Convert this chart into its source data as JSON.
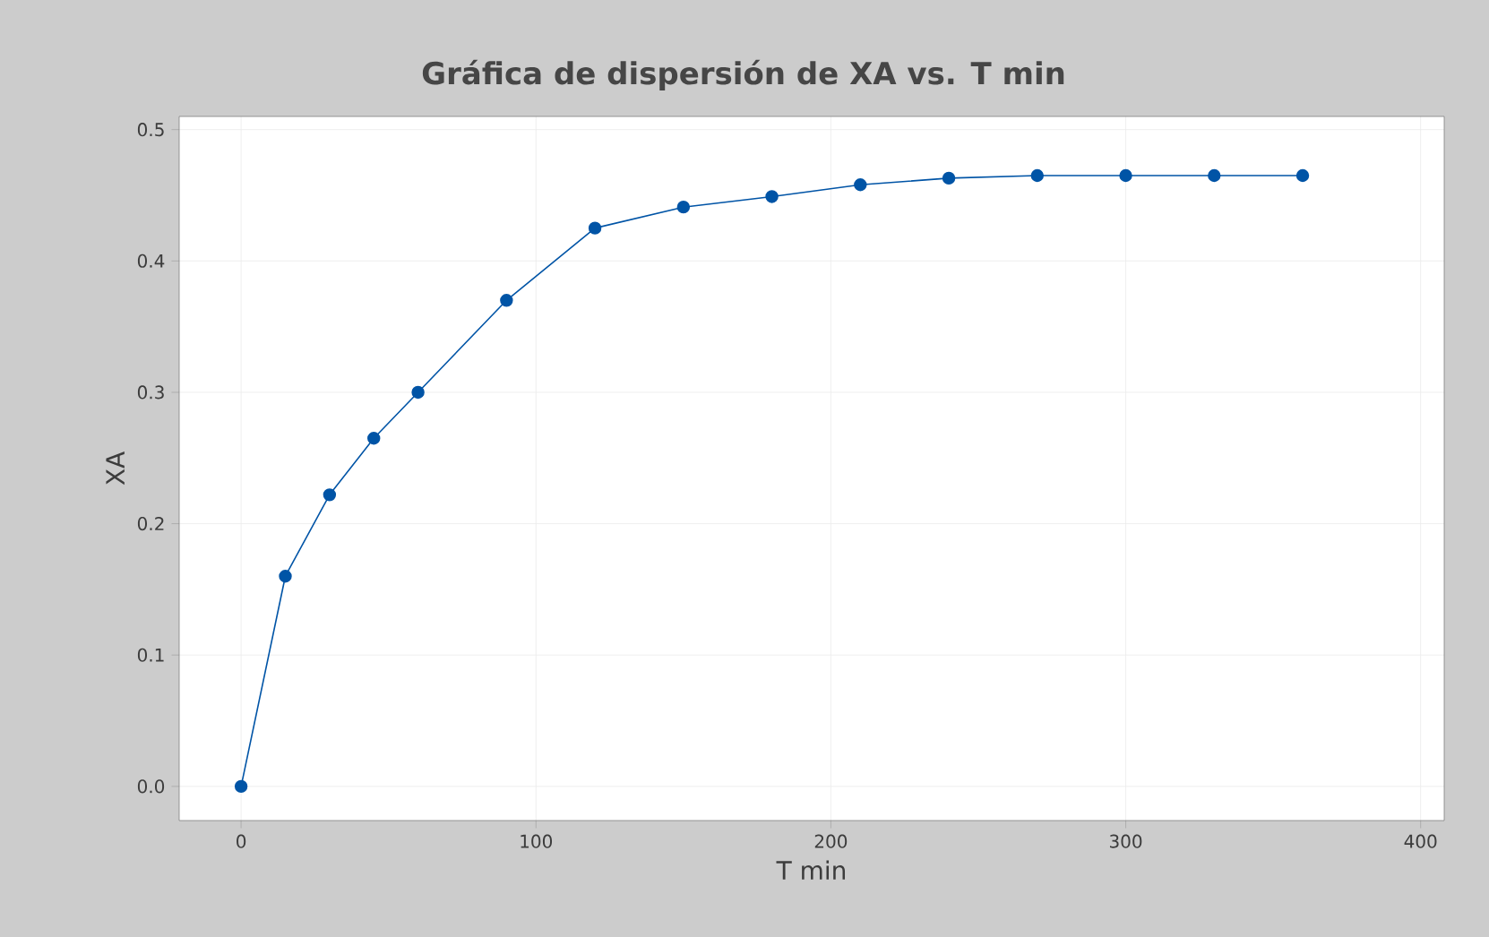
{
  "chart_data": {
    "type": "line",
    "title": "Gráfica de dispersión de XA vs. T min",
    "xlabel": "T min",
    "ylabel": "XA",
    "x": [
      0,
      15,
      30,
      45,
      60,
      90,
      120,
      150,
      180,
      210,
      240,
      270,
      300,
      330,
      360
    ],
    "series": [
      {
        "color": "#0054a6",
        "values": [
          0,
          0.16,
          0.222,
          0.265,
          0.3,
          0.37,
          0.425,
          0.441,
          0.449,
          0.458,
          0.463,
          0.465,
          0.465,
          0.465,
          0.465
        ]
      }
    ],
    "xlim": [
      -21,
      408
    ],
    "ylim": [
      -0.026,
      0.51
    ],
    "xticks": [
      0,
      100,
      200,
      300,
      400
    ],
    "yticks": [
      {
        "value": 0,
        "label": "0.0"
      },
      {
        "value": 0.1,
        "label": "0.1"
      },
      {
        "value": 0.2,
        "label": "0.2"
      },
      {
        "value": 0.3,
        "label": "0.3"
      },
      {
        "value": 0.4,
        "label": "0.4"
      },
      {
        "value": 0.5,
        "label": "0.5"
      }
    ],
    "grid": true,
    "marker": "circle",
    "line_style": "solid"
  }
}
